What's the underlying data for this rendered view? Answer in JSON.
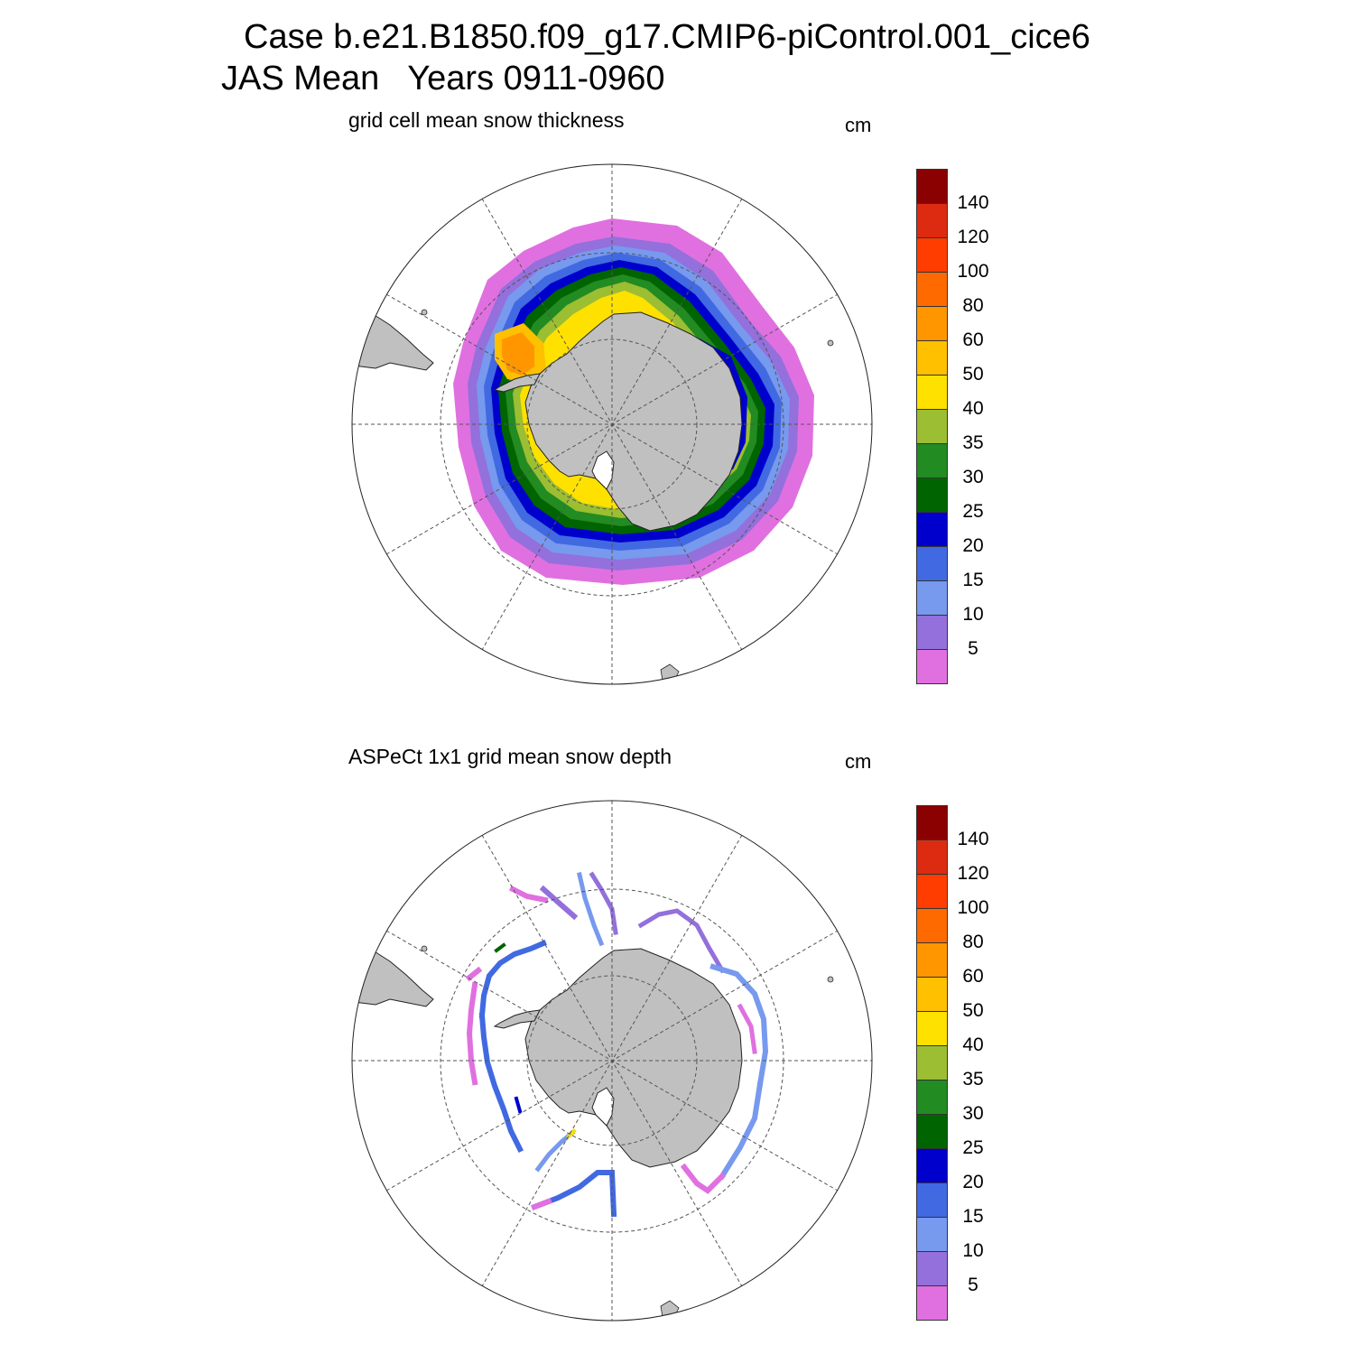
{
  "header": {
    "case_line": "Case b.e21.B1850.f09_g17.CMIP6-piControl.001_cice6",
    "period_line": "JAS Mean   Years 0911-0960"
  },
  "panels": [
    {
      "title": "grid cell mean snow thickness",
      "units": "cm",
      "kind": "model-field"
    },
    {
      "title": "ASPeCt 1x1 grid mean snow depth",
      "units": "cm",
      "kind": "observation-tracks"
    }
  ],
  "colorbar": {
    "labels": [
      "140",
      "120",
      "100",
      "80",
      "60",
      "50",
      "40",
      "35",
      "30",
      "25",
      "20",
      "15",
      "10",
      "5"
    ],
    "colors_top_to_bottom": [
      "#8b0000",
      "#dd2b12",
      "#ff3d00",
      "#ff6a00",
      "#ff9600",
      "#ffc000",
      "#ffe100",
      "#9cbe32",
      "#228b22",
      "#006400",
      "#0000cd",
      "#4169e1",
      "#7799ee",
      "#9370db",
      "#e070e0"
    ]
  },
  "colors": {
    "land": "#c0c0c0",
    "grid": "#555555",
    "coast": "#222222"
  }
}
